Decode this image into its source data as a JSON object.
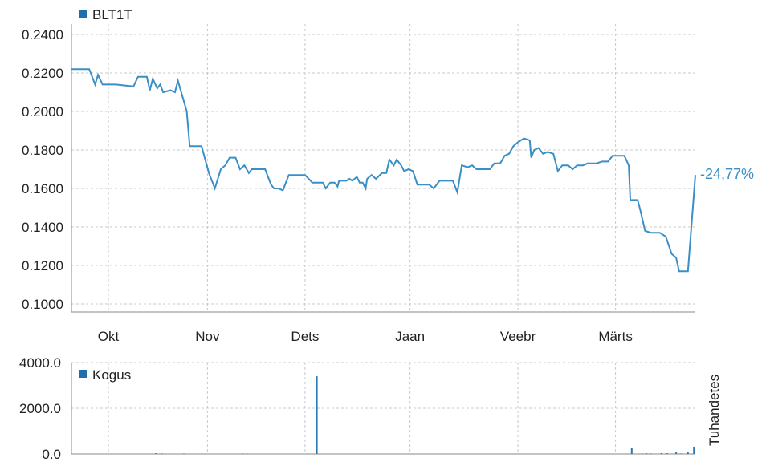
{
  "chart_data": [
    {
      "type": "line",
      "legend": "BLT1T",
      "legend_color": "#1f6fad",
      "line_color": "#3a8fc6",
      "change_label": "-24,77%",
      "ylim": [
        0.095,
        0.245
      ],
      "yticks": [
        "0.2400",
        "0.2200",
        "0.2000",
        "0.1800",
        "0.1600",
        "0.1400",
        "0.1200",
        "0.1000"
      ],
      "xticks": [
        "Okt",
        "Nov",
        "Dets",
        "Jaan",
        "Veebr",
        "Märts"
      ],
      "grid": true,
      "series": [
        {
          "values": [
            [
              0,
              0.222
            ],
            [
              12,
              0.222
            ],
            [
              16,
              0.214
            ],
            [
              18,
              0.219
            ],
            [
              21,
              0.214
            ],
            [
              30,
              0.214
            ],
            [
              42,
              0.213
            ],
            [
              45,
              0.218
            ],
            [
              51,
              0.218
            ],
            [
              53,
              0.211
            ],
            [
              55,
              0.217
            ],
            [
              58,
              0.212
            ],
            [
              60,
              0.214
            ],
            [
              62,
              0.21
            ],
            [
              67,
              0.211
            ],
            [
              70,
              0.21
            ],
            [
              72,
              0.216
            ],
            [
              75,
              0.208
            ],
            [
              78,
              0.2
            ],
            [
              80,
              0.182
            ],
            [
              88,
              0.182
            ],
            [
              93,
              0.168
            ],
            [
              97,
              0.16
            ],
            [
              101,
              0.17
            ],
            [
              104,
              0.172
            ],
            [
              107,
              0.176
            ],
            [
              111,
              0.176
            ],
            [
              114,
              0.17
            ],
            [
              117,
              0.172
            ],
            [
              120,
              0.168
            ],
            [
              122,
              0.17
            ],
            [
              127,
              0.17
            ],
            [
              131,
              0.17
            ],
            [
              135,
              0.162
            ],
            [
              137,
              0.16
            ],
            [
              140,
              0.16
            ],
            [
              143,
              0.159
            ],
            [
              147,
              0.167
            ],
            [
              154,
              0.167
            ],
            [
              158,
              0.167
            ],
            [
              163,
              0.163
            ],
            [
              170,
              0.163
            ],
            [
              172,
              0.16
            ],
            [
              175,
              0.163
            ],
            [
              178,
              0.163
            ],
            [
              180,
              0.161
            ],
            [
              181,
              0.164
            ],
            [
              186,
              0.164
            ],
            [
              188,
              0.165
            ],
            [
              190,
              0.164
            ],
            [
              193,
              0.166
            ],
            [
              195,
              0.163
            ],
            [
              197,
              0.163
            ],
            [
              199,
              0.16
            ],
            [
              200,
              0.165
            ],
            [
              203,
              0.167
            ],
            [
              206,
              0.165
            ],
            [
              210,
              0.168
            ],
            [
              213,
              0.168
            ],
            [
              215,
              0.175
            ],
            [
              218,
              0.172
            ],
            [
              220,
              0.175
            ],
            [
              223,
              0.172
            ],
            [
              225,
              0.169
            ],
            [
              228,
              0.17
            ],
            [
              231,
              0.169
            ],
            [
              234,
              0.162
            ],
            [
              237,
              0.162
            ],
            [
              242,
              0.162
            ],
            [
              245,
              0.16
            ],
            [
              249,
              0.164
            ],
            [
              252,
              0.164
            ],
            [
              258,
              0.164
            ],
            [
              261,
              0.158
            ],
            [
              264,
              0.172
            ],
            [
              268,
              0.171
            ],
            [
              271,
              0.172
            ],
            [
              274,
              0.17
            ],
            [
              278,
              0.17
            ],
            [
              283,
              0.17
            ],
            [
              286,
              0.173
            ],
            [
              290,
              0.173
            ],
            [
              293,
              0.177
            ],
            [
              296,
              0.178
            ],
            [
              299,
              0.182
            ],
            [
              302,
              0.184
            ],
            [
              306,
              0.186
            ],
            [
              310,
              0.185
            ],
            [
              311,
              0.176
            ],
            [
              313,
              0.18
            ],
            [
              316,
              0.181
            ],
            [
              319,
              0.178
            ],
            [
              322,
              0.179
            ],
            [
              326,
              0.178
            ],
            [
              329,
              0.169
            ],
            [
              332,
              0.172
            ],
            [
              336,
              0.172
            ],
            [
              339,
              0.17
            ],
            [
              342,
              0.172
            ],
            [
              346,
              0.172
            ],
            [
              349,
              0.173
            ],
            [
              355,
              0.173
            ],
            [
              359,
              0.174
            ],
            [
              363,
              0.174
            ],
            [
              366,
              0.177
            ],
            [
              374,
              0.177
            ],
            [
              377,
              0.172
            ],
            [
              378,
              0.154
            ],
            [
              383,
              0.154
            ],
            [
              385,
              0.148
            ],
            [
              388,
              0.138
            ],
            [
              392,
              0.137
            ],
            [
              398,
              0.137
            ],
            [
              402,
              0.135
            ],
            [
              406,
              0.126
            ],
            [
              409,
              0.124
            ],
            [
              411,
              0.117
            ],
            [
              414,
              0.117
            ],
            [
              417,
              0.117
            ],
            [
              419,
              0.137
            ],
            [
              422,
              0.167
            ]
          ]
        }
      ]
    },
    {
      "type": "bar",
      "legend": "Kogus",
      "legend_color": "#1f6fad",
      "bar_color": "#2a7ab8",
      "ylabel": "Tuhandetes",
      "ylim": [
        0,
        4000
      ],
      "yticks": [
        "4000.0",
        "2000.0",
        "0.0"
      ],
      "grid": true,
      "series": [
        {
          "values": [
            [
              57,
              30
            ],
            [
              61,
              25
            ],
            [
              76,
              20
            ],
            [
              116,
              20
            ],
            [
              119,
              15
            ],
            [
              166,
              3400
            ],
            [
              379,
              250
            ],
            [
              386,
              20
            ],
            [
              389,
              30
            ],
            [
              392,
              20
            ],
            [
              399,
              40
            ],
            [
              403,
              30
            ],
            [
              409,
              100
            ],
            [
              412,
              20
            ],
            [
              417,
              80
            ],
            [
              421,
              320
            ]
          ]
        }
      ]
    }
  ]
}
